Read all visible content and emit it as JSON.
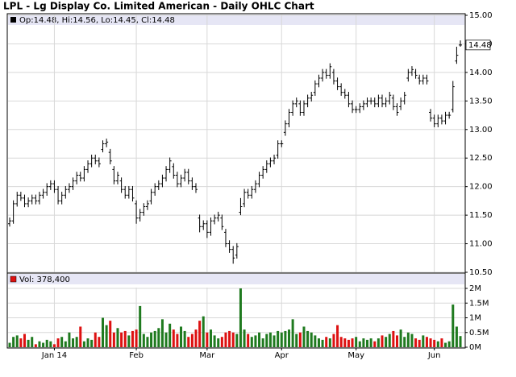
{
  "title": "LPL - Lg Display Co. Limited American - Daily OHLC Chart",
  "chart_data": [
    {
      "type": "ohlc",
      "legend_text": "Op:14.48, Hi:14.56, Lo:14.45, Cl:14.48",
      "last_price_label": "14.48",
      "color": "#000000",
      "grid": true,
      "ylim": [
        10.5,
        15
      ],
      "yticks": [
        {
          "value": 10.5,
          "label": "10.50"
        },
        {
          "value": 11,
          "label": "11.00"
        },
        {
          "value": 11.5,
          "label": "11.50"
        },
        {
          "value": 12,
          "label": "12.00"
        },
        {
          "value": 12.5,
          "label": "12.50"
        },
        {
          "value": 13,
          "label": "13.00"
        },
        {
          "value": 13.5,
          "label": "13.50"
        },
        {
          "value": 14,
          "label": "14.00"
        },
        {
          "value": 14.5,
          "label": "14.50"
        },
        {
          "value": 15,
          "label": "15.00"
        }
      ],
      "open": [
        11.35,
        11.4,
        11.7,
        11.85,
        11.8,
        11.7,
        11.75,
        11.8,
        11.75,
        11.85,
        11.9,
        12.0,
        12.05,
        11.95,
        11.75,
        11.85,
        11.95,
        12.0,
        12.1,
        12.2,
        12.15,
        12.3,
        12.4,
        12.5,
        12.45,
        12.65,
        12.75,
        12.6,
        12.3,
        12.1,
        12.1,
        11.95,
        11.85,
        11.95,
        11.7,
        11.45,
        11.55,
        11.65,
        11.75,
        11.9,
        12.0,
        12.05,
        12.15,
        12.3,
        12.35,
        12.2,
        12.05,
        12.15,
        12.25,
        12.1,
        12.0,
        11.45,
        11.3,
        11.35,
        11.2,
        11.4,
        11.45,
        11.45,
        11.2,
        11.0,
        10.9,
        10.8,
        11.55,
        11.7,
        11.9,
        11.85,
        11.95,
        12.05,
        12.2,
        12.3,
        12.4,
        12.45,
        12.55,
        12.75,
        12.95,
        13.1,
        13.3,
        13.45,
        13.45,
        13.3,
        13.45,
        13.55,
        13.65,
        13.8,
        13.9,
        14.0,
        13.95,
        14.0,
        13.85,
        13.75,
        13.65,
        13.6,
        13.45,
        13.35,
        13.35,
        13.4,
        13.45,
        13.5,
        13.5,
        13.45,
        13.55,
        13.45,
        13.5,
        13.55,
        13.4,
        13.4,
        13.5,
        13.9,
        14.0,
        14.0,
        13.9,
        13.85,
        13.9,
        13.3,
        13.2,
        13.1,
        13.2,
        13.15,
        13.25,
        13.35,
        14.2,
        14.48
      ],
      "high": [
        11.46,
        11.76,
        11.91,
        11.91,
        11.86,
        11.81,
        11.86,
        11.86,
        11.91,
        11.96,
        12.06,
        12.11,
        12.11,
        12.01,
        11.91,
        12.01,
        12.06,
        12.16,
        12.26,
        12.26,
        12.36,
        12.46,
        12.56,
        12.56,
        12.51,
        12.81,
        12.84,
        12.66,
        12.36,
        12.26,
        12.16,
        12.01,
        12.01,
        12.01,
        11.76,
        11.61,
        11.71,
        11.76,
        11.96,
        12.06,
        12.11,
        12.21,
        12.36,
        12.51,
        12.41,
        12.26,
        12.21,
        12.31,
        12.31,
        12.16,
        12.06,
        11.51,
        11.41,
        11.41,
        11.46,
        11.51,
        11.56,
        11.51,
        11.26,
        11.06,
        10.96,
        11.01,
        11.8,
        11.96,
        11.96,
        12.01,
        12.11,
        12.26,
        12.36,
        12.46,
        12.51,
        12.56,
        12.81,
        12.81,
        13.16,
        13.36,
        13.51,
        13.56,
        13.51,
        13.51,
        13.61,
        13.66,
        13.86,
        13.96,
        14.06,
        14.06,
        14.16,
        14.06,
        13.91,
        13.81,
        13.71,
        13.66,
        13.51,
        13.41,
        13.46,
        13.51,
        13.56,
        13.56,
        13.56,
        13.61,
        13.61,
        13.56,
        13.66,
        13.61,
        13.46,
        13.56,
        13.66,
        14.06,
        14.11,
        14.06,
        13.96,
        13.96,
        13.96,
        13.36,
        13.26,
        13.26,
        13.26,
        13.31,
        13.31,
        13.85,
        14.45,
        14.56
      ],
      "low": [
        11.3,
        11.35,
        11.65,
        11.75,
        11.64,
        11.64,
        11.69,
        11.69,
        11.69,
        11.79,
        11.84,
        11.94,
        11.89,
        11.69,
        11.69,
        11.79,
        11.89,
        11.94,
        12.04,
        12.09,
        12.09,
        12.24,
        12.34,
        12.39,
        12.34,
        12.6,
        12.69,
        12.39,
        12.04,
        12.04,
        11.89,
        11.79,
        11.79,
        11.74,
        11.35,
        11.39,
        11.49,
        11.59,
        11.69,
        11.84,
        11.94,
        11.99,
        12.09,
        12.24,
        12.14,
        11.99,
        11.99,
        12.09,
        12.04,
        11.94,
        11.89,
        11.2,
        11.24,
        11.1,
        11.14,
        11.34,
        11.39,
        11.24,
        10.94,
        10.84,
        10.65,
        10.74,
        11.5,
        11.64,
        11.79,
        11.79,
        11.89,
        11.99,
        12.14,
        12.24,
        12.34,
        12.39,
        12.49,
        12.69,
        12.89,
        13.04,
        13.24,
        13.39,
        13.24,
        13.24,
        13.39,
        13.49,
        13.59,
        13.74,
        13.84,
        13.89,
        13.89,
        13.79,
        13.69,
        13.59,
        13.54,
        13.39,
        13.29,
        13.29,
        13.29,
        13.34,
        13.39,
        13.44,
        13.39,
        13.39,
        13.39,
        13.39,
        13.44,
        13.34,
        13.24,
        13.34,
        13.44,
        13.84,
        13.94,
        13.89,
        13.79,
        13.79,
        13.79,
        13.14,
        13.04,
        13.04,
        13.09,
        13.09,
        13.19,
        13.3,
        14.15,
        14.45
      ],
      "close": [
        11.4,
        11.7,
        11.85,
        11.8,
        11.7,
        11.75,
        11.8,
        11.75,
        11.85,
        11.9,
        12.0,
        12.05,
        11.95,
        11.75,
        11.85,
        11.95,
        12.0,
        12.1,
        12.2,
        12.15,
        12.3,
        12.4,
        12.5,
        12.45,
        12.4,
        12.75,
        12.78,
        12.45,
        12.1,
        12.2,
        11.95,
        11.85,
        11.95,
        11.8,
        11.45,
        11.55,
        11.65,
        11.7,
        11.9,
        12.0,
        12.05,
        12.15,
        12.3,
        12.45,
        12.2,
        12.05,
        12.15,
        12.25,
        12.1,
        12.0,
        11.95,
        11.3,
        11.35,
        11.2,
        11.4,
        11.45,
        11.5,
        11.3,
        11.0,
        10.9,
        10.75,
        10.95,
        11.65,
        11.9,
        11.85,
        11.95,
        12.05,
        12.2,
        12.3,
        12.4,
        12.45,
        12.5,
        12.75,
        12.75,
        13.1,
        13.3,
        13.45,
        13.5,
        13.3,
        13.45,
        13.55,
        13.6,
        13.8,
        13.9,
        14.0,
        13.95,
        14.1,
        13.85,
        13.75,
        13.65,
        13.6,
        13.45,
        13.35,
        13.35,
        13.4,
        13.45,
        13.5,
        13.5,
        13.45,
        13.55,
        13.45,
        13.5,
        13.6,
        13.4,
        13.3,
        13.5,
        13.6,
        14.0,
        14.05,
        13.95,
        13.85,
        13.9,
        13.85,
        13.2,
        13.1,
        13.2,
        13.15,
        13.25,
        13.25,
        13.75,
        14.3,
        14.48
      ]
    },
    {
      "type": "bar",
      "legend_text": "Vol: 378,400",
      "up_color": "#1f7a1f",
      "down_color": "#dd1111",
      "grid": true,
      "ylim": [
        0,
        2
      ],
      "yticks": [
        {
          "value": 0,
          "label": "0M"
        },
        {
          "value": 0.5,
          "label": "0.5M"
        },
        {
          "value": 1,
          "label": "1M"
        },
        {
          "value": 1.5,
          "label": "1.5M"
        },
        {
          "value": 2,
          "label": "2M"
        }
      ],
      "categories": [
        null,
        null,
        null,
        null,
        null,
        null,
        null,
        null,
        null,
        null,
        null,
        null,
        "Jan 14",
        null,
        null,
        null,
        null,
        null,
        null,
        null,
        null,
        null,
        null,
        null,
        null,
        null,
        null,
        null,
        null,
        null,
        null,
        null,
        null,
        null,
        "Feb",
        null,
        null,
        null,
        null,
        null,
        null,
        null,
        null,
        null,
        null,
        null,
        null,
        null,
        null,
        null,
        null,
        null,
        null,
        "Mar",
        null,
        null,
        null,
        null,
        null,
        null,
        null,
        null,
        null,
        null,
        null,
        null,
        null,
        null,
        null,
        null,
        null,
        null,
        null,
        "Apr",
        null,
        null,
        null,
        null,
        null,
        null,
        null,
        null,
        null,
        null,
        null,
        null,
        null,
        null,
        null,
        null,
        null,
        null,
        null,
        "May",
        null,
        null,
        null,
        null,
        null,
        null,
        null,
        null,
        null,
        null,
        null,
        null,
        null,
        null,
        null,
        null,
        null,
        null,
        null,
        null,
        "Jun",
        null,
        null,
        null,
        null,
        null,
        null,
        null
      ],
      "values": [
        0.15,
        0.35,
        0.4,
        0.3,
        0.45,
        0.25,
        0.35,
        0.1,
        0.2,
        0.15,
        0.25,
        0.2,
        0.1,
        0.3,
        0.35,
        0.2,
        0.5,
        0.3,
        0.35,
        0.7,
        0.2,
        0.3,
        0.25,
        0.5,
        0.35,
        1.0,
        0.75,
        0.9,
        0.5,
        0.65,
        0.5,
        0.55,
        0.4,
        0.55,
        0.6,
        1.4,
        0.45,
        0.35,
        0.5,
        0.55,
        0.65,
        0.95,
        0.5,
        0.8,
        0.6,
        0.45,
        0.7,
        0.55,
        0.35,
        0.45,
        0.6,
        0.9,
        1.05,
        0.5,
        0.6,
        0.4,
        0.3,
        0.35,
        0.5,
        0.55,
        0.5,
        0.45,
        2.0,
        0.6,
        0.45,
        0.35,
        0.4,
        0.5,
        0.3,
        0.45,
        0.5,
        0.4,
        0.55,
        0.5,
        0.55,
        0.6,
        0.95,
        0.45,
        0.5,
        0.7,
        0.55,
        0.5,
        0.4,
        0.3,
        0.25,
        0.35,
        0.3,
        0.45,
        0.75,
        0.35,
        0.3,
        0.25,
        0.3,
        0.35,
        0.2,
        0.3,
        0.25,
        0.3,
        0.2,
        0.3,
        0.4,
        0.35,
        0.45,
        0.55,
        0.4,
        0.6,
        0.35,
        0.5,
        0.45,
        0.3,
        0.25,
        0.4,
        0.35,
        0.3,
        0.25,
        0.2,
        0.3,
        0.15,
        0.2,
        1.45,
        0.7,
        0.3784
      ]
    }
  ]
}
